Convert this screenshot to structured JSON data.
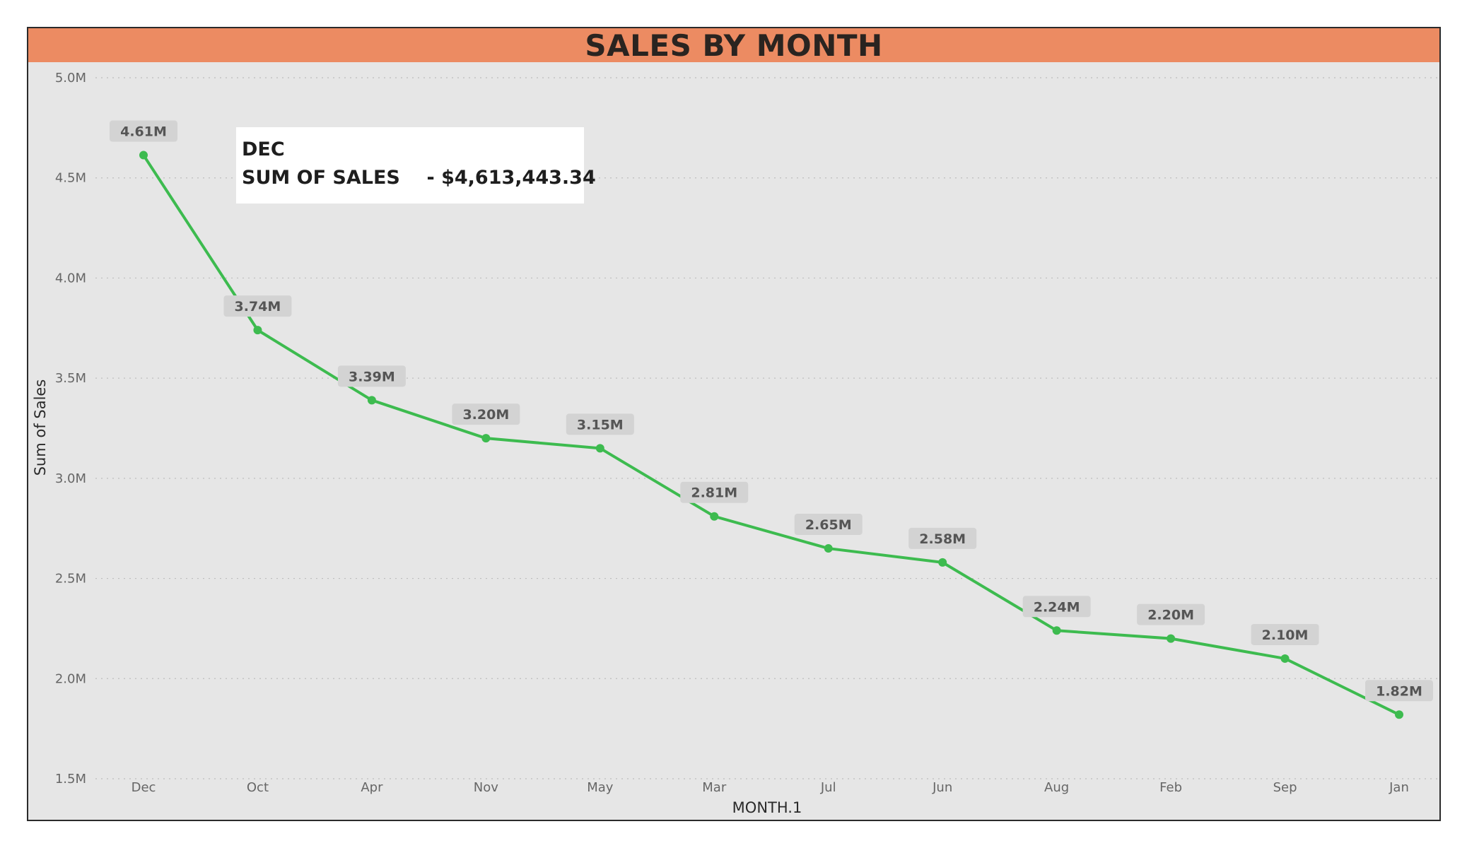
{
  "chart_data": {
    "type": "line",
    "title": "SALES BY MONTH",
    "xlabel": "MONTH.1",
    "ylabel": "Sum of Sales",
    "categories": [
      "Dec",
      "Oct",
      "Apr",
      "Nov",
      "May",
      "Mar",
      "Jul",
      "Jun",
      "Aug",
      "Feb",
      "Sep",
      "Jan"
    ],
    "values": [
      4613443.34,
      3740000,
      3390000,
      3200000,
      3150000,
      2810000,
      2650000,
      2580000,
      2240000,
      2200000,
      2100000,
      1820000
    ],
    "data_labels": [
      "4.61M",
      "3.74M",
      "3.39M",
      "3.20M",
      "3.15M",
      "2.81M",
      "2.65M",
      "2.58M",
      "2.24M",
      "2.20M",
      "2.10M",
      "1.82M"
    ],
    "yticks": [
      1500000,
      2000000,
      2500000,
      3000000,
      3500000,
      4000000,
      4500000,
      5000000
    ],
    "ytick_labels": [
      "1.5M",
      "2.0M",
      "2.5M",
      "3.0M",
      "3.5M",
      "4.0M",
      "4.5M",
      "5.0M"
    ],
    "ylim": [
      1500000,
      5000000
    ],
    "grid": true,
    "legend": "none",
    "colors": {
      "line": "#3dbb4f",
      "title_banner": "#ec8b62",
      "plot_background": "#e6e6e6",
      "label_background": "#d3d3d3"
    }
  },
  "tooltip": {
    "month": "DEC",
    "measure_label": "SUM OF SALES",
    "measure_value": "- $4,613,443.34"
  }
}
